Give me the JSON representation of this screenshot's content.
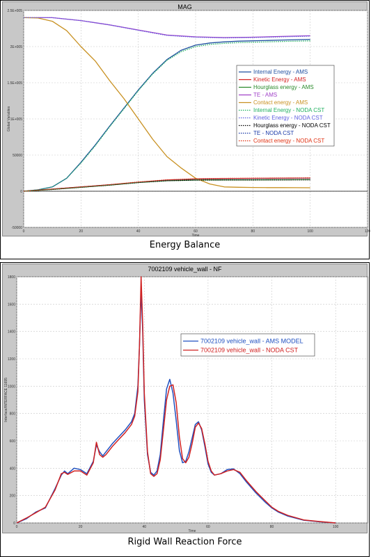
{
  "captions": {
    "top": "Energy Balance",
    "bottom": "Rigid Wall Reaction Force"
  },
  "chart_data": [
    {
      "type": "line",
      "title": "MAG",
      "xlabel": "Time",
      "ylabel": "Global Variables",
      "xlim": [
        0,
        120
      ],
      "ylim": [
        -50000,
        250000
      ],
      "xticks": [
        "0",
        "20",
        "40",
        "60",
        "80",
        "100",
        "120"
      ],
      "yticks": [
        "-50000",
        "0",
        "50000",
        "1E+005",
        "1.5E+005",
        "2E+005",
        "2.5E+005"
      ],
      "grid": true,
      "legend_position": "right",
      "series": [
        {
          "name": "Internal Energy - AMS",
          "color": "#1f4fa0",
          "style": "solid",
          "x": [
            0,
            5,
            10,
            15,
            20,
            25,
            30,
            35,
            40,
            45,
            50,
            55,
            60,
            65,
            70,
            75,
            80,
            85,
            90,
            95,
            100
          ],
          "y": [
            0,
            2000,
            6000,
            18000,
            40000,
            64000,
            90000,
            115000,
            140000,
            163000,
            182000,
            195000,
            202000,
            205000,
            206500,
            207500,
            208000,
            208500,
            209000,
            209500,
            210000
          ]
        },
        {
          "name": "Kinetic Energy - AMS",
          "color": "#d42020",
          "style": "solid",
          "x": [
            0,
            10,
            20,
            30,
            40,
            50,
            60,
            70,
            80,
            90,
            100
          ],
          "y": [
            0,
            3000,
            6000,
            9000,
            12500,
            15500,
            17000,
            17500,
            17800,
            18000,
            18200
          ]
        },
        {
          "name": "Hourglass energy - AMS",
          "color": "#2a8a2a",
          "style": "solid",
          "x": [
            0,
            10,
            20,
            30,
            40,
            50,
            60,
            70,
            80,
            90,
            100
          ],
          "y": [
            0,
            2500,
            5500,
            8500,
            12000,
            14500,
            15500,
            15700,
            15800,
            15900,
            16000
          ]
        },
        {
          "name": "TE - AMS",
          "color": "#a040c8",
          "style": "solid",
          "x": [
            0,
            10,
            20,
            30,
            40,
            50,
            60,
            70,
            80,
            90,
            100
          ],
          "y": [
            240000,
            240000,
            236000,
            230000,
            223000,
            216000,
            213500,
            212500,
            213000,
            214000,
            215000
          ]
        },
        {
          "name": "Contact energy - AMS",
          "color": "#c89020",
          "style": "solid",
          "x": [
            0,
            5,
            10,
            15,
            20,
            25,
            30,
            35,
            40,
            45,
            50,
            55,
            60,
            65,
            70,
            75,
            80,
            85,
            90,
            95,
            100
          ],
          "y": [
            240000,
            239500,
            235000,
            222000,
            200000,
            180000,
            153000,
            128000,
            100000,
            72000,
            48000,
            32000,
            18000,
            10000,
            6000,
            5500,
            5200,
            5000,
            5000,
            4900,
            4800
          ]
        },
        {
          "name": "Internal Energy - NODA CST",
          "color": "#20b060",
          "style": "dotted",
          "x": [
            0,
            5,
            10,
            15,
            20,
            25,
            30,
            35,
            40,
            45,
            50,
            55,
            60,
            65,
            70,
            75,
            80,
            85,
            90,
            95,
            100
          ],
          "y": [
            0,
            2000,
            6000,
            18000,
            39000,
            63000,
            89000,
            114000,
            139000,
            162000,
            181000,
            193000,
            200000,
            203000,
            204500,
            205500,
            206000,
            206500,
            207000,
            207500,
            208000
          ]
        },
        {
          "name": "Kinetic Energy - NODA CST",
          "color": "#6060e0",
          "style": "dotted",
          "x": [
            0,
            10,
            20,
            30,
            40,
            50,
            60,
            70,
            80,
            90,
            100
          ],
          "y": [
            240000,
            240000,
            236000,
            230000,
            222500,
            215500,
            213000,
            212000,
            212500,
            213500,
            214500
          ]
        },
        {
          "name": "Hourglass energy - NODA CST",
          "color": "#000000",
          "style": "dotted",
          "x": [
            0,
            10,
            20,
            30,
            40,
            50,
            60,
            70,
            80,
            90,
            100
          ],
          "y": [
            0,
            2500,
            5500,
            8500,
            12000,
            14500,
            15300,
            15500,
            15600,
            15700,
            15800
          ]
        },
        {
          "name": "TE - NODA CST",
          "color": "#1a3aa8",
          "style": "dotted",
          "x": [
            0,
            10,
            20,
            30,
            40,
            50,
            60,
            70,
            80,
            90,
            100
          ],
          "y": [
            0,
            3000,
            6000,
            9000,
            12500,
            15500,
            16800,
            17300,
            17600,
            17800,
            18000
          ]
        },
        {
          "name": "Contact energy - NODA CST",
          "color": "#e03010",
          "style": "dotted",
          "x": [
            0,
            10,
            20,
            30,
            40,
            50,
            60,
            70,
            80,
            90,
            100
          ],
          "y": [
            0,
            3000,
            6000,
            9000,
            12800,
            15800,
            17200,
            17800,
            18100,
            18300,
            18500
          ]
        }
      ]
    },
    {
      "type": "line",
      "title": "7002109 vehicle_wall - NF",
      "xlabel": "Time",
      "ylabel": "Interface/INTERFACE 11695",
      "xlim": [
        0,
        110
      ],
      "ylim": [
        0,
        1800
      ],
      "xticks": [
        "0",
        "20",
        "40",
        "60",
        "80",
        "100"
      ],
      "yticks": [
        "0",
        "200",
        "400",
        "600",
        "800",
        "1000",
        "1200",
        "1400",
        "1600",
        "1800"
      ],
      "grid": true,
      "legend_position": "center-right",
      "series": [
        {
          "name": "7002109 vehicle_wall - AMS MODEL",
          "color": "#2050c0",
          "style": "solid",
          "x": [
            0,
            3,
            6,
            9,
            12,
            14,
            15,
            16,
            18,
            20,
            22,
            24,
            25,
            26,
            27,
            28,
            30,
            32,
            34,
            36,
            37,
            38,
            38.5,
            39,
            39.5,
            40,
            41,
            42,
            43,
            44,
            45,
            46,
            47,
            48,
            49,
            50,
            51,
            52,
            53,
            54,
            55,
            56,
            57,
            58,
            59,
            60,
            61,
            62,
            64,
            66,
            68,
            70,
            72,
            75,
            78,
            80,
            82,
            85,
            90,
            95,
            100
          ],
          "y": [
            0,
            30,
            80,
            110,
            250,
            350,
            380,
            360,
            400,
            390,
            360,
            450,
            570,
            520,
            490,
            520,
            580,
            630,
            680,
            740,
            800,
            1000,
            1300,
            1700,
            1400,
            900,
            500,
            370,
            350,
            380,
            500,
            750,
            980,
            1050,
            950,
            750,
            530,
            440,
            450,
            520,
            620,
            720,
            740,
            680,
            560,
            430,
            370,
            350,
            360,
            390,
            395,
            360,
            300,
            220,
            150,
            110,
            80,
            50,
            20,
            8,
            0
          ]
        },
        {
          "name": "7002109 vehicle_wall - NODA CST",
          "color": "#d02020",
          "style": "solid",
          "x": [
            0,
            3,
            6,
            9,
            12,
            14,
            15,
            16,
            18,
            20,
            22,
            24,
            25,
            26,
            27,
            28,
            30,
            32,
            34,
            36,
            37,
            38,
            38.5,
            39,
            39.5,
            40,
            41,
            42,
            43,
            44,
            45,
            46,
            47,
            48,
            49,
            50,
            51,
            52,
            53,
            54,
            55,
            56,
            57,
            58,
            59,
            60,
            61,
            62,
            64,
            66,
            68,
            70,
            72,
            75,
            78,
            80,
            82,
            85,
            90,
            95,
            100
          ],
          "y": [
            0,
            35,
            75,
            115,
            240,
            360,
            370,
            355,
            380,
            380,
            350,
            440,
            590,
            500,
            480,
            500,
            560,
            610,
            660,
            720,
            780,
            960,
            1300,
            1800,
            1450,
            950,
            520,
            360,
            340,
            360,
            460,
            680,
            900,
            1000,
            1010,
            880,
            630,
            470,
            440,
            480,
            580,
            700,
            730,
            690,
            580,
            450,
            380,
            350,
            360,
            380,
            390,
            370,
            310,
            230,
            160,
            115,
            85,
            55,
            22,
            10,
            0
          ]
        }
      ]
    }
  ]
}
